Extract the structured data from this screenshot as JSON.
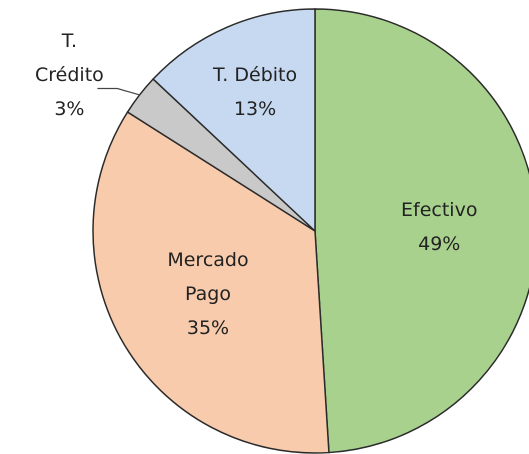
{
  "chart_data": {
    "type": "pie",
    "categories": [
      "Efectivo",
      "Mercado Pago",
      "T. Crédito",
      "T. Débito"
    ],
    "values": [
      49,
      35,
      3,
      13
    ],
    "value_labels": [
      "49%",
      "35%",
      "3%",
      "13%"
    ],
    "colors": [
      "#a9d18e",
      "#f8cbad",
      "#c9c9c9",
      "#c6d9f0"
    ]
  }
}
